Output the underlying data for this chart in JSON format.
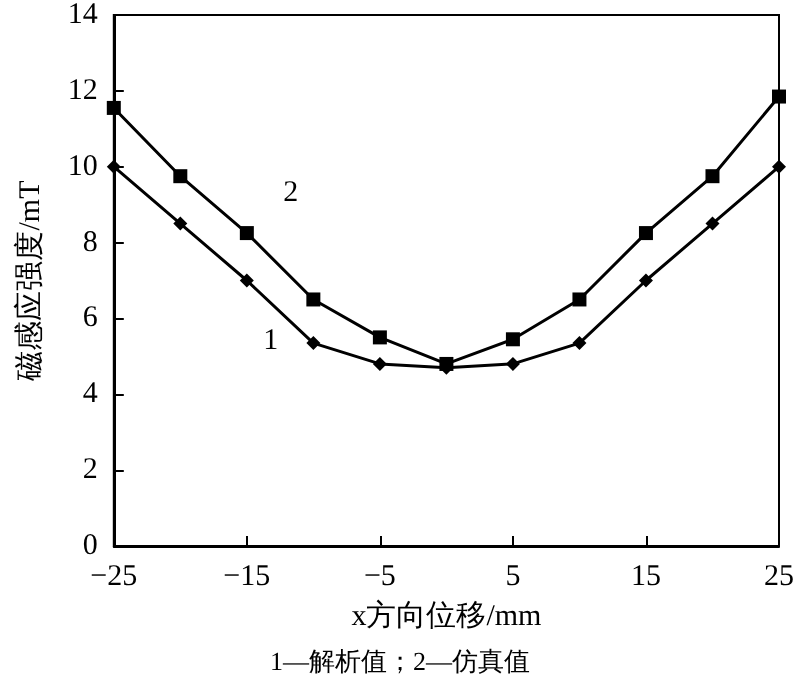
{
  "chart_data": {
    "type": "line",
    "xlabel": "x方向位移/mm",
    "ylabel": "磁感应强度/mT",
    "x": [
      -25,
      -20,
      -15,
      -10,
      -5,
      0,
      5,
      10,
      15,
      20,
      25
    ],
    "series": [
      {
        "name": "1",
        "color": "#000000",
        "marker": "diamond",
        "values": [
          10,
          8.5,
          7.0,
          5.35,
          4.8,
          4.7,
          4.8,
          5.35,
          7.0,
          8.5,
          10
        ]
      },
      {
        "name": "2",
        "color": "#000000",
        "marker": "square",
        "values": [
          11.55,
          9.75,
          8.25,
          6.5,
          5.5,
          4.8,
          5.45,
          6.5,
          8.25,
          9.75,
          11.85
        ]
      }
    ],
    "xlim": [
      -25,
      25
    ],
    "xticks": [
      -25,
      -15,
      -5,
      5,
      15,
      25
    ],
    "ylim": [
      0,
      14
    ],
    "yticks": [
      0,
      2,
      4,
      6,
      8,
      10,
      12,
      14
    ],
    "grid": false,
    "legend": false,
    "line_style": "solid",
    "annotations": [
      "1—解析值；2—仿真值"
    ]
  }
}
